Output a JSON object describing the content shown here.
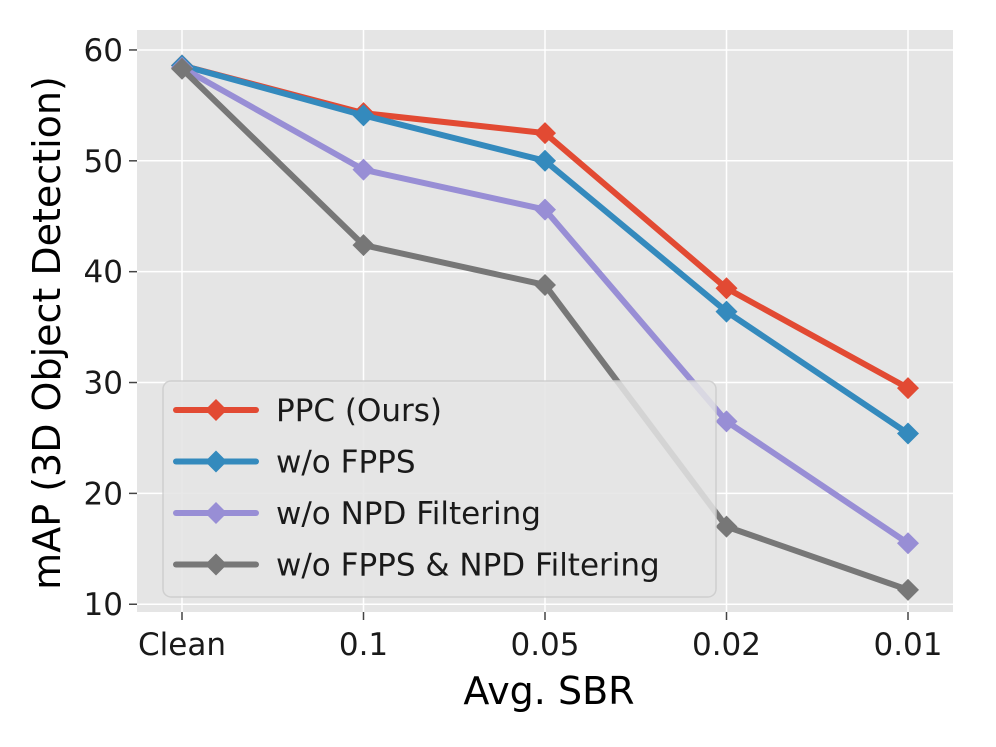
{
  "chart_data": {
    "type": "line",
    "title": "",
    "xlabel": "Avg. SBR",
    "ylabel": "mAP (3D Object Detection)",
    "categories": [
      "Clean",
      "0.1",
      "0.05",
      "0.02",
      "0.01"
    ],
    "yticks": [
      10,
      20,
      30,
      40,
      50,
      60
    ],
    "ylim": [
      9.3,
      61.8
    ],
    "grid": true,
    "legend_position": "lower-left",
    "series": [
      {
        "name": "PPC (Ours)",
        "color": "#e24a33",
        "marker": "diamond",
        "values": [
          58.6,
          54.3,
          52.5,
          38.5,
          29.5
        ]
      },
      {
        "name": "w/o FPPS",
        "color": "#348abd",
        "marker": "diamond",
        "values": [
          58.6,
          54.1,
          50.0,
          36.4,
          25.4
        ]
      },
      {
        "name": "w/o NPD Filtering",
        "color": "#988ed5",
        "marker": "diamond",
        "values": [
          58.4,
          49.2,
          45.6,
          26.5,
          15.5
        ]
      },
      {
        "name": "w/o FPPS & NPD Filtering",
        "color": "#777777",
        "marker": "diamond",
        "values": [
          58.3,
          42.4,
          38.8,
          17.0,
          11.3
        ]
      }
    ]
  }
}
